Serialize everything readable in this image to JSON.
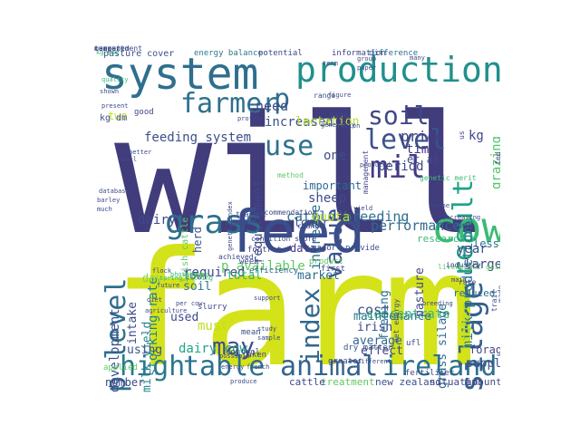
{
  "words": [
    {
      "t": "will",
      "c": "#413c7c"
    },
    {
      "t": "farm",
      "c": "#d4e21a"
    },
    {
      "t": "feed",
      "c": "#3b4d8a"
    },
    {
      "t": "system",
      "c": "#2e6f8e"
    },
    {
      "t": "production",
      "c": "#21908c"
    },
    {
      "t": "cow",
      "c": "#3bbb75"
    },
    {
      "t": "grass",
      "c": "#2e6f8e"
    },
    {
      "t": "milk",
      "c": "#443a83"
    },
    {
      "t": "table",
      "c": "#2c728e"
    },
    {
      "t": "high",
      "c": "#2a788e"
    },
    {
      "t": "animal",
      "c": "#33638d"
    },
    {
      "t": "ireland",
      "c": "#2d708e"
    },
    {
      "t": "silage",
      "c": "#35608d"
    },
    {
      "t": "farmer",
      "c": "#2d708e"
    },
    {
      "t": "level",
      "c": "#3b528b"
    },
    {
      "t": "soil",
      "c": "#3f4889"
    },
    {
      "t": "use",
      "c": "#2c728e"
    },
    {
      "t": "value",
      "c": "#3b528b"
    },
    {
      "t": "result",
      "c": "#20a386"
    },
    {
      "t": "p level",
      "c": "#2e6f8e"
    },
    {
      "t": "index",
      "c": "#31688e"
    },
    {
      "t": "may",
      "c": "#3e4c8a"
    },
    {
      "t": "p",
      "c": "#2e6e8e"
    },
    {
      "t": "cattle breeding",
      "c": "#2e6f8e"
    },
    {
      "t": "increased",
      "c": "#3a548c"
    },
    {
      "t": "price",
      "c": "#423f85"
    },
    {
      "t": "feeding system",
      "c": "#3d4e8a"
    },
    {
      "t": "performance",
      "c": "#2f6b8e"
    },
    {
      "t": "concentrate",
      "c": "#3bbb75"
    },
    {
      "t": "milk production",
      "c": "#2a788e"
    },
    {
      "t": "kg",
      "c": "#404688"
    },
    {
      "t": "need",
      "c": "#3e4989"
    },
    {
      "t": "lactation",
      "c": "#bddf26"
    },
    {
      "t": "period",
      "c": "#3f4788"
    },
    {
      "t": "time",
      "c": "#443983"
    },
    {
      "t": "grazing",
      "c": "#52c569"
    },
    {
      "t": "one",
      "c": "#3d4e8a"
    },
    {
      "t": "requirement",
      "c": "#3f4788"
    },
    {
      "t": "increase",
      "c": "#2e6e8e"
    },
    {
      "t": "stocking rate",
      "c": "#26828e"
    },
    {
      "t": "development",
      "c": "#3b528b"
    },
    {
      "t": "dairy",
      "c": "#3f4889"
    },
    {
      "t": "soil",
      "c": "#2b758e"
    },
    {
      "t": "quota",
      "c": "#bddf26"
    },
    {
      "t": "sheep",
      "c": "#3e4989"
    },
    {
      "t": "data",
      "c": "#443983"
    },
    {
      "t": "lower",
      "c": "#3b528b"
    },
    {
      "t": "important",
      "c": "#31688e"
    },
    {
      "t": "research",
      "c": "#3bbb75"
    },
    {
      "t": "less",
      "c": "#2c738e"
    },
    {
      "t": "large",
      "c": "#3e4a89"
    },
    {
      "t": "year",
      "c": "#3b528b"
    },
    {
      "t": "pasture",
      "c": "#3f4788"
    },
    {
      "t": "market",
      "c": "#2e6e8e"
    },
    {
      "t": "p available",
      "c": "#5ec962"
    },
    {
      "t": "required",
      "c": "#3e4a89"
    },
    {
      "t": "total",
      "c": "#32b67a"
    },
    {
      "t": "day",
      "c": "#84d44b"
    },
    {
      "t": "low",
      "c": "#3b528b"
    },
    {
      "t": "dairy cow",
      "c": "#21a685"
    },
    {
      "t": "used",
      "c": "#3e4989"
    },
    {
      "t": "must",
      "c": "#bddf26"
    },
    {
      "t": "milk yield",
      "c": "#26828e"
    },
    {
      "t": "intake",
      "c": "#3e4989"
    },
    {
      "t": "cost",
      "c": "#3b528b"
    },
    {
      "t": "average",
      "c": "#31688e"
    },
    {
      "t": "effect",
      "c": "#414487"
    },
    {
      "t": "irish",
      "c": "#3e4989"
    },
    {
      "t": "maintenance",
      "c": "#2a788e"
    },
    {
      "t": "grass silage",
      "c": "#2e6e8e"
    },
    {
      "t": "feeding",
      "c": "#2d708e"
    },
    {
      "t": "higher",
      "c": "#b5de2b"
    },
    {
      "t": "supply",
      "c": "#3d4e8a"
    },
    {
      "t": "forage",
      "c": "#414487"
    },
    {
      "t": "number",
      "c": "#3f4788"
    },
    {
      "t": "using",
      "c": "#3a548c"
    },
    {
      "t": "new zealand",
      "c": "#3b528b"
    },
    {
      "t": "situation",
      "c": "#3f4788"
    },
    {
      "t": "amount",
      "c": "#3e4c8a"
    },
    {
      "t": "treatment",
      "c": "#5ec962"
    },
    {
      "t": "cattle",
      "c": "#3f4788"
    },
    {
      "t": "et al",
      "c": "#3e4a89"
    },
    {
      "t": "two",
      "c": "#bddf26"
    },
    {
      "t": "herd",
      "c": "#3b528b"
    },
    {
      "t": "based",
      "c": "#3f4788"
    },
    {
      "t": "reduced",
      "c": "#2e6f8e"
    },
    {
      "t": "pasture cover",
      "c": "#3b528b"
    },
    {
      "t": "energy balance",
      "c": "#2a788e"
    },
    {
      "t": "potential",
      "c": "#3f4788"
    },
    {
      "t": "information",
      "c": "#414487"
    },
    {
      "t": "difference",
      "c": "#2e6e8e"
    },
    {
      "t": "kg day",
      "c": "#3bbb75"
    },
    {
      "t": "kg dm",
      "c": "#3d4e8a"
    },
    {
      "t": "good",
      "c": "#3f4788"
    },
    {
      "t": "irish cattle",
      "c": "#5ec962"
    },
    {
      "t": "efficiency",
      "c": "#31688e"
    },
    {
      "t": "footrot",
      "c": "#3f4788"
    },
    {
      "t": "area",
      "c": "#84d44b"
    },
    {
      "t": "week",
      "c": "#3e4989"
    },
    {
      "t": "slurry",
      "c": "#3f4788"
    },
    {
      "t": "mean",
      "c": "#3e4a89"
    },
    {
      "t": "control",
      "c": "#3e4a89"
    },
    {
      "t": "taken",
      "c": "#3e4a89"
    },
    {
      "t": "greater",
      "c": "#3f4788"
    },
    {
      "t": "dry matter",
      "c": "#3b528b"
    },
    {
      "t": "fertiliser",
      "c": "#3f4788"
    },
    {
      "t": "applied",
      "c": "#5ec962"
    },
    {
      "t": "ufl",
      "c": "#3f4788"
    },
    {
      "t": "first",
      "c": "#3e4989"
    },
    {
      "t": "major",
      "c": "#3f4788"
    },
    {
      "t": "provide",
      "c": "#3b528b"
    },
    {
      "t": "product",
      "c": "#5ec962"
    },
    {
      "t": "change",
      "c": "#3f4788"
    },
    {
      "t": "condition score",
      "c": "#3f4788"
    },
    {
      "t": "achieved",
      "c": "#3e4a89"
    },
    {
      "t": "support",
      "c": "#3f4788"
    },
    {
      "t": "study",
      "c": "#3e4a89"
    },
    {
      "t": "sample",
      "c": "#3e4a89"
    },
    {
      "t": "energy",
      "c": "#3e4a89"
    },
    {
      "t": "french",
      "c": "#3e4a89"
    },
    {
      "t": "produce",
      "c": "#3e4a89"
    },
    {
      "t": "possible",
      "c": "#3e4a89"
    },
    {
      "t": "method",
      "c": "#5ec962"
    },
    {
      "t": "recommendation",
      "c": "#3e4a89"
    },
    {
      "t": "teagasc",
      "c": "#3e4a89"
    },
    {
      "t": "similar",
      "c": "#3e4a89"
    },
    {
      "t": "lamb",
      "c": "#3e4a89"
    },
    {
      "t": "us",
      "c": "#3f4788"
    },
    {
      "t": "fed",
      "c": "#3f4788"
    },
    {
      "t": "management",
      "c": "#3f4788"
    },
    {
      "t": "genetic merit",
      "c": "#3bbb75"
    },
    {
      "t": "liveweight gain",
      "c": "#5ec962"
    },
    {
      "t": "industry",
      "c": "#3e4989"
    },
    {
      "t": "rate",
      "c": "#3f4788"
    },
    {
      "t": "main",
      "c": "#3f4788"
    },
    {
      "t": "made",
      "c": "#3e4a89"
    },
    {
      "t": "trait",
      "c": "#3e4a89"
    },
    {
      "t": "net energy",
      "c": "#3e4989"
    },
    {
      "t": "phosphorus",
      "c": "#3bbb75"
    },
    {
      "t": "spring calving",
      "c": "#3bbb75"
    },
    {
      "t": "future",
      "c": "#3e4a89"
    },
    {
      "t": "flock",
      "c": "#3e4a89"
    },
    {
      "t": "diet",
      "c": "#3e4a89"
    },
    {
      "t": "agriculture",
      "c": "#3e4a89"
    },
    {
      "t": "many",
      "c": "#3e4a89"
    },
    {
      "t": "group",
      "c": "#3e4a89"
    },
    {
      "t": "paper",
      "c": "#3e4a89"
    },
    {
      "t": "range",
      "c": "#3e4a89"
    },
    {
      "t": "figure",
      "c": "#3e4a89"
    },
    {
      "t": "term",
      "c": "#3e4a89"
    },
    {
      "t": "shown",
      "c": "#3e4a89"
    },
    {
      "t": "quality",
      "c": "#3bbb75"
    },
    {
      "t": "present",
      "c": "#3e4a89"
    },
    {
      "t": "database",
      "c": "#3e4a89"
    },
    {
      "t": "barley",
      "c": "#3e4a89"
    },
    {
      "t": "much",
      "c": "#3e4a89"
    },
    {
      "t": "small",
      "c": "#3e4a89"
    },
    {
      "t": "better",
      "c": "#3e4a89"
    },
    {
      "t": "protein",
      "c": "#3e4a89"
    },
    {
      "t": "generally",
      "c": "#3e4a89"
    },
    {
      "t": "ration",
      "c": "#3e4a89"
    },
    {
      "t": "genetic index",
      "c": "#3e4a89"
    },
    {
      "t": "produced",
      "c": "#3e4a89"
    },
    {
      "t": "yield",
      "c": "#3e4a89"
    },
    {
      "t": "tonne",
      "c": "#3e4a89"
    },
    {
      "t": "increasing",
      "c": "#3e4a89"
    },
    {
      "t": "breeding",
      "c": "#3e4a89"
    },
    {
      "t": "different",
      "c": "#3e4a89"
    },
    {
      "t": "per cow",
      "c": "#3e4a89"
    },
    {
      "t": "current",
      "c": "#3e4a89"
    },
    {
      "t": "measurement",
      "c": "#3e4a89"
    },
    {
      "t": "compared",
      "c": "#3e4a89"
    },
    {
      "t": "target",
      "c": "#3e4a89"
    }
  ]
}
